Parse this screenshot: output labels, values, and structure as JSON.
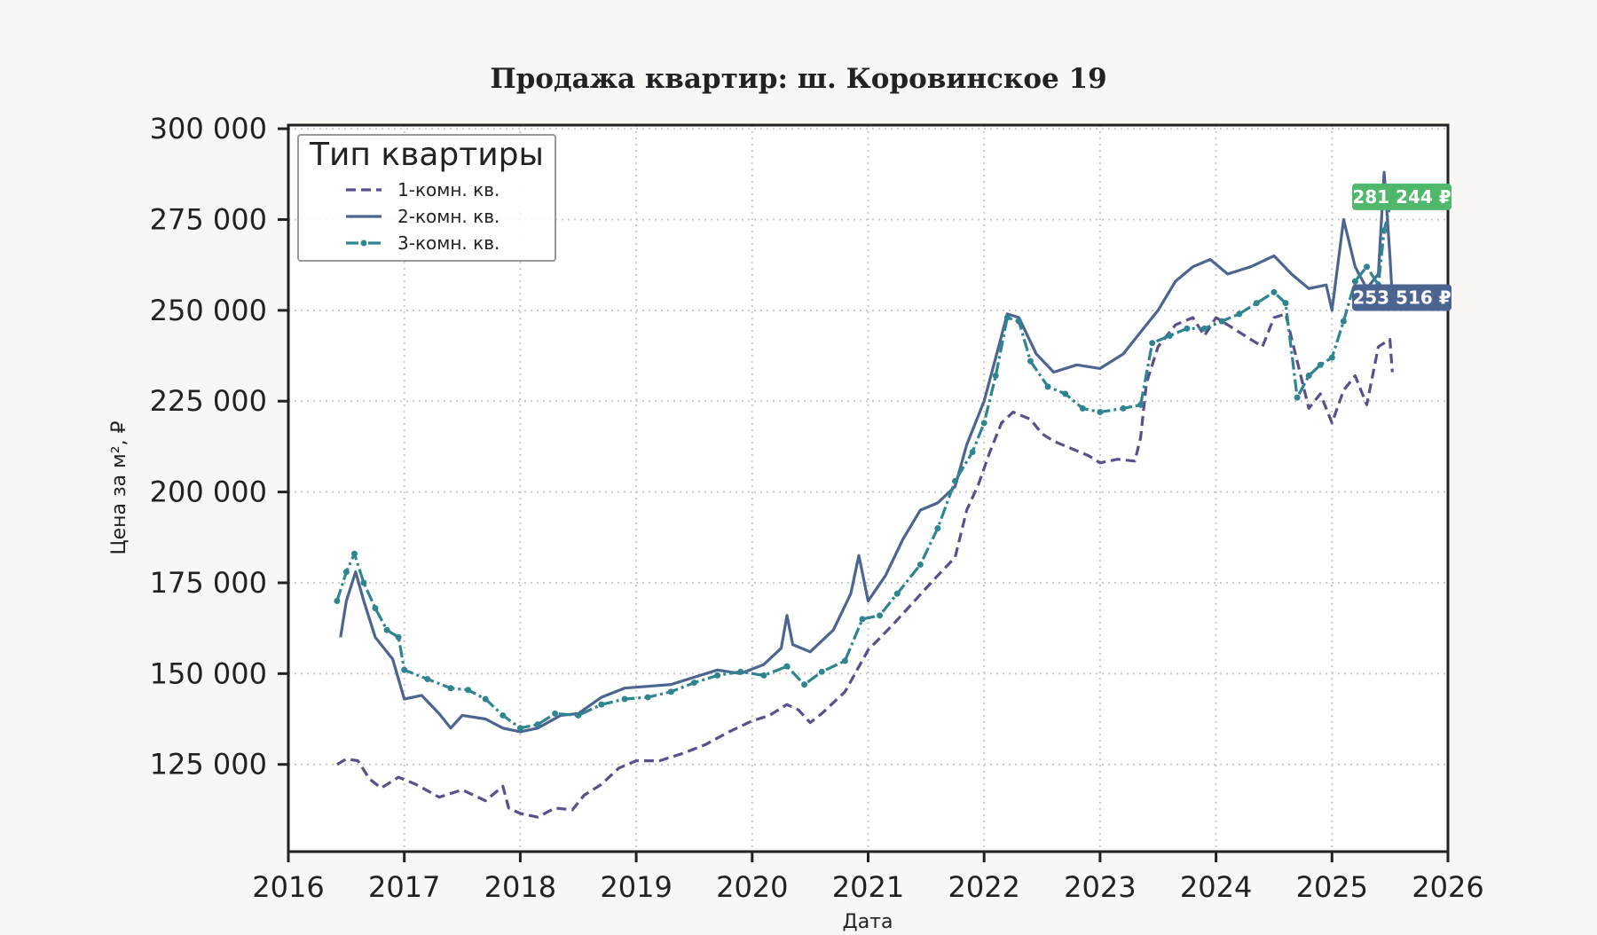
{
  "chart_data": {
    "type": "line",
    "title": "Продажа квартир: ш. Коровинское 19",
    "xlabel": "Дата",
    "ylabel": "Цена за м², ₽",
    "xlim": [
      2016,
      2026
    ],
    "ylim": [
      101000,
      301000
    ],
    "x_ticks": [
      "2016",
      "2017",
      "2018",
      "2019",
      "2020",
      "2021",
      "2022",
      "2023",
      "2024",
      "2025",
      "2026"
    ],
    "y_ticks": [
      {
        "value": 125000,
        "label": "125 000"
      },
      {
        "value": 150000,
        "label": "150 000"
      },
      {
        "value": 175000,
        "label": "175 000"
      },
      {
        "value": 200000,
        "label": "200 000"
      },
      {
        "value": 225000,
        "label": "225 000"
      },
      {
        "value": 250000,
        "label": "250 000"
      },
      {
        "value": 275000,
        "label": "275 000"
      },
      {
        "value": 300000,
        "label": "300 000"
      }
    ],
    "grid": true,
    "legend": {
      "title": "Тип квартиры",
      "placement": "top-left"
    },
    "series": [
      {
        "name": "1-комн. кв.",
        "color": "#5a4e8c",
        "style": "dashed",
        "points": [
          [
            2016.42,
            125000
          ],
          [
            2016.5,
            126500
          ],
          [
            2016.6,
            126000
          ],
          [
            2016.7,
            121000
          ],
          [
            2016.8,
            118500
          ],
          [
            2016.95,
            121500
          ],
          [
            2017.1,
            119500
          ],
          [
            2017.3,
            116000
          ],
          [
            2017.5,
            118000
          ],
          [
            2017.7,
            115000
          ],
          [
            2017.85,
            119000
          ],
          [
            2017.9,
            113000
          ],
          [
            2018.0,
            111500
          ],
          [
            2018.15,
            110500
          ],
          [
            2018.3,
            113000
          ],
          [
            2018.45,
            112500
          ],
          [
            2018.55,
            116500
          ],
          [
            2018.7,
            119500
          ],
          [
            2018.85,
            124000
          ],
          [
            2019.0,
            126000
          ],
          [
            2019.2,
            126000
          ],
          [
            2019.4,
            128000
          ],
          [
            2019.6,
            130500
          ],
          [
            2019.8,
            134000
          ],
          [
            2020.0,
            137000
          ],
          [
            2020.15,
            138500
          ],
          [
            2020.3,
            141500
          ],
          [
            2020.4,
            140000
          ],
          [
            2020.5,
            136500
          ],
          [
            2020.6,
            139000
          ],
          [
            2020.8,
            145000
          ],
          [
            2021.0,
            156500
          ],
          [
            2021.2,
            163000
          ],
          [
            2021.4,
            170000
          ],
          [
            2021.6,
            177000
          ],
          [
            2021.75,
            182000
          ],
          [
            2021.85,
            195000
          ],
          [
            2021.95,
            202000
          ],
          [
            2022.05,
            211000
          ],
          [
            2022.15,
            219000
          ],
          [
            2022.25,
            222000
          ],
          [
            2022.4,
            220000
          ],
          [
            2022.5,
            216000
          ],
          [
            2022.6,
            214000
          ],
          [
            2022.75,
            212000
          ],
          [
            2022.9,
            210000
          ],
          [
            2023.0,
            208000
          ],
          [
            2023.15,
            209000
          ],
          [
            2023.3,
            208500
          ],
          [
            2023.35,
            215000
          ],
          [
            2023.4,
            230000
          ],
          [
            2023.5,
            240000
          ],
          [
            2023.65,
            246000
          ],
          [
            2023.8,
            248000
          ],
          [
            2023.9,
            243000
          ],
          [
            2024.0,
            248000
          ],
          [
            2024.1,
            246000
          ],
          [
            2024.25,
            243000
          ],
          [
            2024.4,
            240000
          ],
          [
            2024.5,
            248000
          ],
          [
            2024.6,
            249000
          ],
          [
            2024.7,
            236000
          ],
          [
            2024.8,
            223000
          ],
          [
            2024.9,
            227000
          ],
          [
            2025.0,
            219000
          ],
          [
            2025.1,
            228000
          ],
          [
            2025.2,
            232000
          ],
          [
            2025.3,
            224000
          ],
          [
            2025.4,
            240000
          ],
          [
            2025.5,
            242000
          ],
          [
            2025.52,
            233000
          ]
        ]
      },
      {
        "name": "2-комн. кв.",
        "color": "#4c6590",
        "style": "solid",
        "points": [
          [
            2016.45,
            160000
          ],
          [
            2016.5,
            170000
          ],
          [
            2016.58,
            178000
          ],
          [
            2016.65,
            170000
          ],
          [
            2016.75,
            160000
          ],
          [
            2016.9,
            154000
          ],
          [
            2017.0,
            143000
          ],
          [
            2017.15,
            144000
          ],
          [
            2017.3,
            139000
          ],
          [
            2017.4,
            135000
          ],
          [
            2017.5,
            138500
          ],
          [
            2017.7,
            137500
          ],
          [
            2017.85,
            135000
          ],
          [
            2018.0,
            134000
          ],
          [
            2018.15,
            135000
          ],
          [
            2018.35,
            138500
          ],
          [
            2018.5,
            139000
          ],
          [
            2018.7,
            143500
          ],
          [
            2018.9,
            146000
          ],
          [
            2019.1,
            146500
          ],
          [
            2019.3,
            147000
          ],
          [
            2019.5,
            149000
          ],
          [
            2019.7,
            151000
          ],
          [
            2019.9,
            150000
          ],
          [
            2020.1,
            152500
          ],
          [
            2020.25,
            157000
          ],
          [
            2020.3,
            166000
          ],
          [
            2020.35,
            158000
          ],
          [
            2020.5,
            156000
          ],
          [
            2020.7,
            162000
          ],
          [
            2020.85,
            172000
          ],
          [
            2020.92,
            182500
          ],
          [
            2021.0,
            170000
          ],
          [
            2021.15,
            177000
          ],
          [
            2021.3,
            187000
          ],
          [
            2021.45,
            195000
          ],
          [
            2021.6,
            197000
          ],
          [
            2021.75,
            201500
          ],
          [
            2021.85,
            213000
          ],
          [
            2022.0,
            225000
          ],
          [
            2022.1,
            237000
          ],
          [
            2022.2,
            249000
          ],
          [
            2022.3,
            248000
          ],
          [
            2022.45,
            238000
          ],
          [
            2022.6,
            233000
          ],
          [
            2022.8,
            235000
          ],
          [
            2023.0,
            234000
          ],
          [
            2023.2,
            238000
          ],
          [
            2023.35,
            244000
          ],
          [
            2023.5,
            250000
          ],
          [
            2023.65,
            258000
          ],
          [
            2023.8,
            262000
          ],
          [
            2023.95,
            264000
          ],
          [
            2024.1,
            260000
          ],
          [
            2024.3,
            262000
          ],
          [
            2024.5,
            265000
          ],
          [
            2024.65,
            260000
          ],
          [
            2024.8,
            256000
          ],
          [
            2024.95,
            257000
          ],
          [
            2025.0,
            250000
          ],
          [
            2025.1,
            275000
          ],
          [
            2025.2,
            262000
          ],
          [
            2025.3,
            256000
          ],
          [
            2025.4,
            260000
          ],
          [
            2025.45,
            288000
          ],
          [
            2025.5,
            265000
          ],
          [
            2025.52,
            253516
          ]
        ]
      },
      {
        "name": "3-комн. кв.",
        "color": "#2e8590",
        "style": "dash-dot-markers",
        "points": [
          [
            2016.42,
            170000
          ],
          [
            2016.5,
            178000
          ],
          [
            2016.57,
            183000
          ],
          [
            2016.65,
            175000
          ],
          [
            2016.75,
            168000
          ],
          [
            2016.85,
            162000
          ],
          [
            2016.95,
            160000
          ],
          [
            2017.0,
            151000
          ],
          [
            2017.2,
            148500
          ],
          [
            2017.4,
            146000
          ],
          [
            2017.55,
            145500
          ],
          [
            2017.7,
            143000
          ],
          [
            2017.85,
            138500
          ],
          [
            2018.0,
            135000
          ],
          [
            2018.15,
            136000
          ],
          [
            2018.3,
            139000
          ],
          [
            2018.5,
            138500
          ],
          [
            2018.7,
            141500
          ],
          [
            2018.9,
            143000
          ],
          [
            2019.1,
            143500
          ],
          [
            2019.3,
            145000
          ],
          [
            2019.5,
            147500
          ],
          [
            2019.7,
            149500
          ],
          [
            2019.9,
            150500
          ],
          [
            2020.1,
            149500
          ],
          [
            2020.3,
            152000
          ],
          [
            2020.45,
            147000
          ],
          [
            2020.6,
            150500
          ],
          [
            2020.8,
            153500
          ],
          [
            2020.95,
            165000
          ],
          [
            2021.1,
            166000
          ],
          [
            2021.25,
            172000
          ],
          [
            2021.45,
            180000
          ],
          [
            2021.6,
            190000
          ],
          [
            2021.75,
            203000
          ],
          [
            2021.9,
            211000
          ],
          [
            2022.0,
            219000
          ],
          [
            2022.1,
            232000
          ],
          [
            2022.2,
            248000
          ],
          [
            2022.3,
            247000
          ],
          [
            2022.4,
            236000
          ],
          [
            2022.55,
            229000
          ],
          [
            2022.7,
            227000
          ],
          [
            2022.85,
            223000
          ],
          [
            2023.0,
            222000
          ],
          [
            2023.2,
            223000
          ],
          [
            2023.35,
            224000
          ],
          [
            2023.45,
            241000
          ],
          [
            2023.6,
            243000
          ],
          [
            2023.75,
            245000
          ],
          [
            2023.9,
            245000
          ],
          [
            2024.05,
            247000
          ],
          [
            2024.2,
            249000
          ],
          [
            2024.35,
            252000
          ],
          [
            2024.5,
            255000
          ],
          [
            2024.6,
            252000
          ],
          [
            2024.7,
            226000
          ],
          [
            2024.8,
            232000
          ],
          [
            2024.9,
            235000
          ],
          [
            2025.0,
            237000
          ],
          [
            2025.1,
            247000
          ],
          [
            2025.2,
            258000
          ],
          [
            2025.3,
            262000
          ],
          [
            2025.4,
            257000
          ],
          [
            2025.45,
            272000
          ],
          [
            2025.52,
            281244
          ]
        ]
      }
    ],
    "annotations": [
      {
        "text": "281 244 ₽",
        "value": 281244,
        "color": "#4fb86a"
      },
      {
        "text": "253 516 ₽",
        "value": 253516,
        "color": "#4c6590"
      }
    ]
  }
}
